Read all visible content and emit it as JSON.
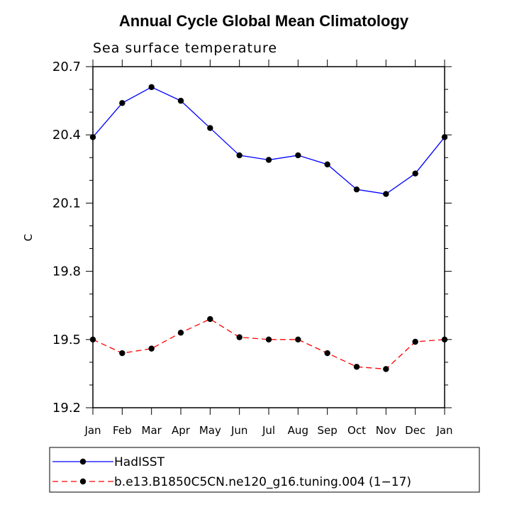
{
  "chart_data": {
    "type": "line",
    "title": "Annual Cycle Global Mean Climatology",
    "subtitle": "Sea surface temperature",
    "xlabel": "",
    "ylabel": "C",
    "categories": [
      "Jan",
      "Feb",
      "Mar",
      "Apr",
      "May",
      "Jun",
      "Jul",
      "Aug",
      "Sep",
      "Oct",
      "Nov",
      "Dec",
      "Jan"
    ],
    "ylim": [
      19.2,
      20.7
    ],
    "yticks": [
      "19.2",
      "19.5",
      "19.8",
      "20.1",
      "20.4",
      "20.7"
    ],
    "grid": false,
    "legend_position": "bottom",
    "series": [
      {
        "name": "HadISST",
        "color": "#0000ff",
        "dash": "solid",
        "values": [
          20.39,
          20.54,
          20.61,
          20.55,
          20.43,
          20.31,
          20.29,
          20.31,
          20.27,
          20.16,
          20.14,
          20.23,
          20.39
        ]
      },
      {
        "name": "b.e13.B1850C5CN.ne120_g16.tuning.004 (1−17)",
        "color": "#ff0000",
        "dash": "dashed",
        "values": [
          19.5,
          19.44,
          19.46,
          19.53,
          19.59,
          19.51,
          19.5,
          19.5,
          19.44,
          19.38,
          19.37,
          19.49,
          19.5
        ]
      }
    ]
  }
}
